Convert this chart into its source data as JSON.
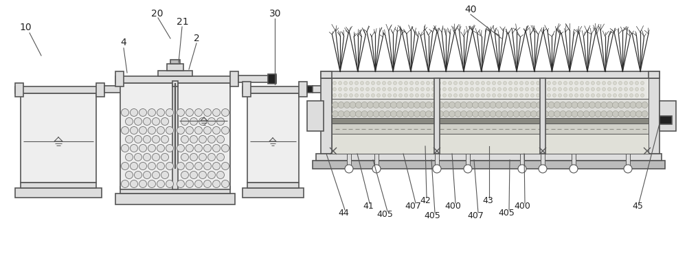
{
  "bg_color": "#ffffff",
  "lc": "#555555",
  "lw": 1.2,
  "lw_thin": 0.7,
  "gray_light": "#eeeeee",
  "gray_med": "#dddddd",
  "gray_dark": "#bbbbbb",
  "gray_fill": "#cccccc"
}
